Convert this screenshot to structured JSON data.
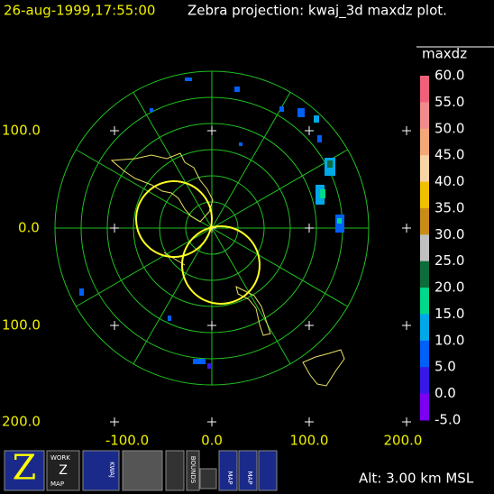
{
  "header": {
    "timestamp": "26-aug-1999,17:55:00",
    "title": "Zebra projection: kwaj_3d maxdz plot."
  },
  "colorbar": {
    "title": "maxdz",
    "labels": [
      "60.0",
      "55.0",
      "50.0",
      "45.0",
      "40.0",
      "35.0",
      "30.0",
      "25.0",
      "20.0",
      "15.0",
      "10.0",
      "5.0",
      "0.0",
      "-5.0"
    ],
    "colors": [
      "#f0607a",
      "#f08c8c",
      "#f4a878",
      "#f8d4a4",
      "#f0c000",
      "#c88c18",
      "#c0c0c0",
      "#0c6c3c",
      "#00d88c",
      "#00a8e8",
      "#0060f8",
      "#3818e8",
      "#7c00f4"
    ]
  },
  "axes": {
    "y_labels": [
      "100.0",
      "0.0",
      "100.0",
      "200.0"
    ],
    "x_labels": [
      "-100.0",
      "0.0",
      "100.0",
      "200.0"
    ]
  },
  "toolbar": {
    "work": "WORK",
    "z": "Z",
    "map": "MAP",
    "kwaj": "KWAJ",
    "bounds": "BOUNDS",
    "map2": "MAP",
    "map3": "MAP"
  },
  "footer": {
    "altitude": "Alt: 3.00 km MSL"
  }
}
